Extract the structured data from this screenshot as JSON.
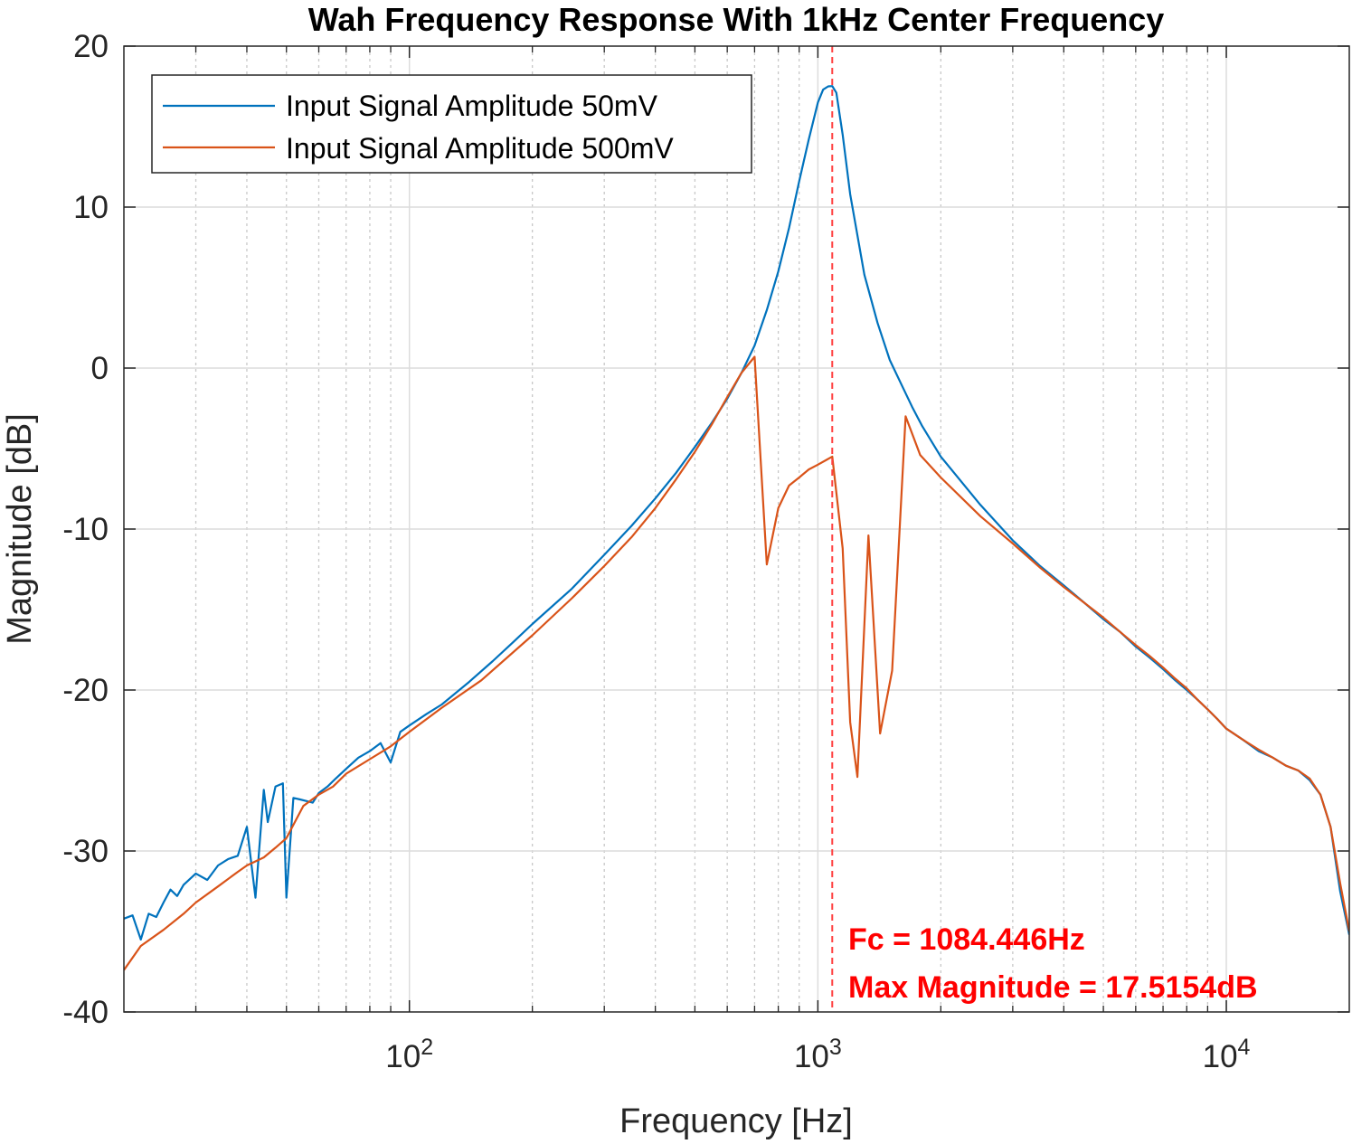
{
  "chart_data": {
    "type": "line",
    "title": "Wah Frequency Response With 1kHz Center Frequency",
    "xlabel": "Frequency [Hz]",
    "ylabel": "Magnitude [dB]",
    "xscale": "log",
    "xlim": [
      20,
      20000
    ],
    "ylim": [
      -40,
      20
    ],
    "yticks": [
      20,
      10,
      0,
      -10,
      -20,
      -30,
      -40
    ],
    "xticks": [
      {
        "value": 100,
        "base": "10",
        "exp": "2"
      },
      {
        "value": 1000,
        "base": "10",
        "exp": "3"
      },
      {
        "value": 10000,
        "base": "10",
        "exp": "4"
      }
    ],
    "grid": true,
    "legend_position": "top-left",
    "series": [
      {
        "name": "Input Signal Amplitude 50mV",
        "color": "#0072bd",
        "x": [
          20,
          21,
          22,
          23,
          24,
          25,
          26,
          27,
          28,
          30,
          32,
          34,
          36,
          38,
          40,
          42,
          44,
          45,
          47,
          49,
          50,
          52,
          54,
          56,
          58,
          60,
          63,
          66,
          70,
          75,
          80,
          85,
          90,
          95,
          100,
          110,
          120,
          140,
          160,
          180,
          200,
          250,
          300,
          350,
          400,
          450,
          500,
          550,
          600,
          650,
          700,
          750,
          800,
          850,
          900,
          950,
          1000,
          1030,
          1060,
          1084.446,
          1110,
          1150,
          1200,
          1300,
          1400,
          1500,
          1600,
          1700,
          1800,
          2000,
          2500,
          3000,
          3500,
          4000,
          4500,
          5000,
          5500,
          6000,
          6500,
          7000,
          7500,
          8000,
          8500,
          9000,
          9500,
          10000,
          11000,
          12000,
          13000,
          14000,
          15000,
          16000,
          17000,
          18000,
          19000,
          20000
        ],
        "y": [
          -34.2,
          -34.0,
          -35.5,
          -33.9,
          -34.1,
          -33.2,
          -32.4,
          -32.8,
          -32.1,
          -31.4,
          -31.8,
          -30.9,
          -30.5,
          -30.3,
          -28.5,
          -32.9,
          -26.2,
          -28.2,
          -26.0,
          -25.8,
          -32.9,
          -26.7,
          -26.8,
          -26.9,
          -27.0,
          -26.4,
          -26.0,
          -25.5,
          -24.9,
          -24.2,
          -23.8,
          -23.3,
          -24.5,
          -22.6,
          -22.2,
          -21.5,
          -20.9,
          -19.5,
          -18.2,
          -17.0,
          -15.9,
          -13.7,
          -11.6,
          -9.8,
          -8.1,
          -6.5,
          -4.9,
          -3.4,
          -1.9,
          -0.3,
          1.4,
          3.6,
          6.0,
          8.7,
          11.6,
          14.2,
          16.5,
          17.3,
          17.5,
          17.5154,
          17.1,
          14.5,
          10.8,
          5.8,
          2.8,
          0.5,
          -1.0,
          -2.4,
          -3.6,
          -5.5,
          -8.5,
          -10.7,
          -12.3,
          -13.5,
          -14.6,
          -15.6,
          -16.4,
          -17.3,
          -18.0,
          -18.7,
          -19.4,
          -20.0,
          -20.6,
          -21.2,
          -21.8,
          -22.4,
          -23.1,
          -23.8,
          -24.2,
          -24.7,
          -25.0,
          -25.6,
          -26.5,
          -28.5,
          -32.5,
          -35.2
        ]
      },
      {
        "name": "Input Signal Amplitude 500mV",
        "color": "#d95319",
        "x": [
          20,
          22,
          25,
          28,
          30,
          34,
          38,
          40,
          44,
          47,
          50,
          55,
          60,
          65,
          70,
          80,
          90,
          100,
          120,
          150,
          200,
          250,
          300,
          350,
          400,
          450,
          500,
          550,
          600,
          650,
          700,
          750,
          800,
          850,
          900,
          950,
          1000,
          1050,
          1084.446,
          1150,
          1200,
          1250,
          1330,
          1420,
          1520,
          1640,
          1780,
          2000,
          2500,
          3000,
          3500,
          4000,
          4500,
          5000,
          5500,
          6000,
          6500,
          7000,
          7500,
          8000,
          8500,
          9000,
          9500,
          10000,
          11000,
          12000,
          13000,
          14000,
          15000,
          16000,
          17000,
          18000,
          19000,
          20000
        ],
        "y": [
          -37.4,
          -35.9,
          -34.9,
          -33.9,
          -33.2,
          -32.2,
          -31.3,
          -30.9,
          -30.4,
          -29.8,
          -29.2,
          -27.2,
          -26.5,
          -26.0,
          -25.2,
          -24.3,
          -23.5,
          -22.6,
          -21.1,
          -19.4,
          -16.6,
          -14.3,
          -12.3,
          -10.5,
          -8.7,
          -6.9,
          -5.2,
          -3.5,
          -1.8,
          -0.3,
          0.7,
          -12.2,
          -8.7,
          -7.3,
          -6.8,
          -6.3,
          -6.0,
          -5.7,
          -5.5,
          -11.2,
          -22.0,
          -25.4,
          -10.4,
          -22.7,
          -18.8,
          -3.0,
          -5.4,
          -6.8,
          -9.2,
          -10.9,
          -12.4,
          -13.6,
          -14.6,
          -15.5,
          -16.4,
          -17.2,
          -17.9,
          -18.6,
          -19.3,
          -19.9,
          -20.6,
          -21.2,
          -21.8,
          -22.4,
          -23.1,
          -23.7,
          -24.2,
          -24.7,
          -25.0,
          -25.5,
          -26.5,
          -28.5,
          -32.0,
          -35.0
        ]
      }
    ],
    "annotations": {
      "fc_line_x": 1084.446,
      "fc_line_color": "#ff4040",
      "text_color": "#ff0000",
      "line1": "Fc = 1084.446Hz",
      "line2": "Max Magnitude = 17.5154dB"
    }
  }
}
